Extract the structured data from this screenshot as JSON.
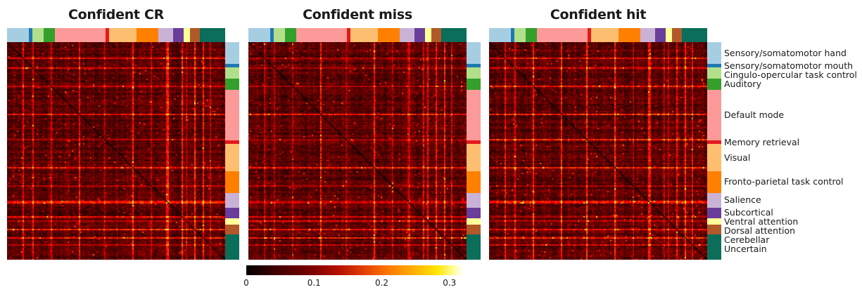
{
  "chart_data": [
    {
      "type": "heatmap",
      "title": "Confident CR",
      "color_range": [
        0,
        0.3
      ]
    },
    {
      "type": "heatmap",
      "title": "Confident miss",
      "color_range": [
        0,
        0.3
      ]
    },
    {
      "type": "heatmap",
      "title": "Confident hit",
      "color_range": [
        0,
        0.3
      ]
    }
  ],
  "colorbar": {
    "colormap": "hot",
    "ticks": [
      "0",
      "0.1",
      "0.2",
      "0.3"
    ],
    "tick_values": [
      0,
      0.1,
      0.2,
      0.3
    ],
    "range": [
      0,
      0.32
    ]
  },
  "networks": [
    {
      "label": "Sensory/somatomotor hand",
      "color": "#a6cee3",
      "share": 9
    },
    {
      "label": "Sensory/somatomotor mouth",
      "color": "#1f78b4",
      "share": 1.5
    },
    {
      "label": "Cingulo-opercular task control",
      "color": "#b2df8a",
      "share": 4.5
    },
    {
      "label": "Auditory",
      "color": "#33a02c",
      "share": 4.5
    },
    {
      "label": "Default mode",
      "color": "#fb9a99",
      "share": 21
    },
    {
      "label": "Memory retrieval",
      "color": "#e31a1c",
      "share": 1.5
    },
    {
      "label": "Visual",
      "color": "#fdbf6f",
      "share": 11
    },
    {
      "label": "Fronto-parietal task control",
      "color": "#ff7f00",
      "share": 9
    },
    {
      "label": "Salience",
      "color": "#cab2d6",
      "share": 6
    },
    {
      "label": "Subcortical",
      "color": "#6a3d9a",
      "share": 4.5
    },
    {
      "label": "Ventral attention",
      "color": "#ffff99",
      "share": 2.5
    },
    {
      "label": "Dorsal attention",
      "color": "#b15928",
      "share": 4
    },
    {
      "label": "Cerebellar",
      "color": "#006d5b",
      "share": 0.5
    },
    {
      "label": "Uncertain",
      "color": "#0b6e5a",
      "share": 10
    }
  ]
}
